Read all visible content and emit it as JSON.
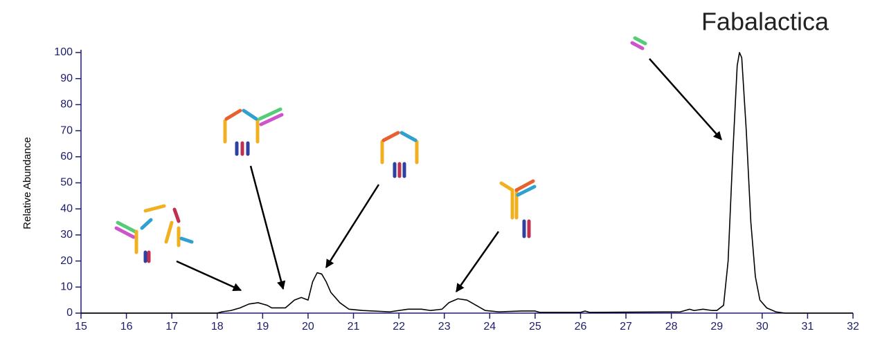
{
  "chart_data": {
    "type": "line",
    "title": "Fabalactica",
    "y_label": "Relative Abundance",
    "color": "#000000",
    "x": [
      15,
      18,
      18.1,
      18.3,
      18.5,
      18.7,
      18.9,
      19.1,
      19.2,
      19.5,
      19.7,
      19.85,
      20.0,
      20.1,
      20.2,
      20.3,
      20.4,
      20.5,
      20.7,
      20.9,
      21.2,
      21.8,
      22.2,
      22.5,
      22.7,
      22.95,
      23.1,
      23.3,
      23.5,
      23.7,
      23.9,
      24.2,
      24.7,
      25.0,
      25.1,
      26.0,
      26.1,
      26.2,
      28.2,
      28.4,
      28.5,
      28.7,
      28.9,
      29.0,
      29.15,
      29.25,
      29.35,
      29.45,
      29.5,
      29.55,
      29.65,
      29.75,
      29.85,
      29.95,
      30.1,
      30.3,
      30.5,
      32
    ],
    "values": [
      0,
      0,
      0.5,
      1,
      2,
      3.5,
      4,
      3,
      2,
      2,
      5,
      6,
      5,
      12,
      15.5,
      15,
      12,
      8,
      4,
      1.5,
      1,
      0.5,
      1.5,
      1.5,
      1,
      1.5,
      4,
      5.5,
      5,
      3,
      1,
      0.5,
      0.8,
      0.8,
      0.3,
      0.3,
      0.8,
      0.3,
      0.5,
      1.5,
      1,
      1.5,
      1,
      1,
      3,
      20,
      60,
      95,
      100,
      98,
      70,
      35,
      14,
      5,
      2,
      0.5,
      0,
      0
    ],
    "xlim": [
      15,
      32
    ],
    "ylim": [
      0,
      100
    ],
    "xticks": [
      15,
      16,
      17,
      18,
      19,
      20,
      21,
      22,
      23,
      24,
      25,
      26,
      27,
      28,
      29,
      30,
      31,
      32
    ],
    "yticks": [
      0,
      10,
      20,
      30,
      40,
      50,
      60,
      70,
      80,
      90,
      100
    ]
  }
}
